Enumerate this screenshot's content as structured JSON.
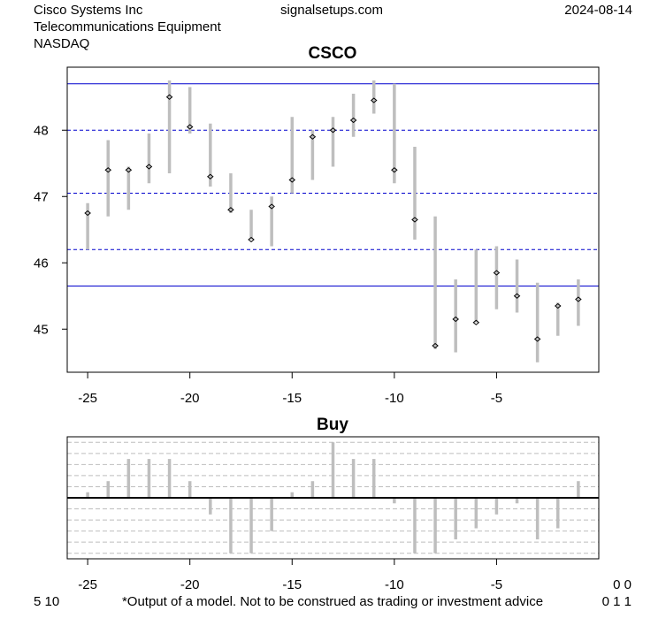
{
  "header": {
    "company": "Cisco Systems Inc",
    "industry": "Telecommunications Equipment",
    "exchange": "NASDAQ",
    "site": "signalsetups.com",
    "date": "2024-08-14"
  },
  "footer": {
    "left": "5 10",
    "disclaimer": "*Output of a model. Not to be construed as trading or investment advice",
    "right_top": "0 0",
    "right_bottom": "0 1 1"
  },
  "colors": {
    "range_bar": "#bebebe",
    "level_line": "#0000cd",
    "grid_dash": "#bebebe",
    "axis": "#000000"
  },
  "chart_data": [
    {
      "type": "range",
      "title": "CSCO",
      "xlim": [
        -26,
        0
      ],
      "ylim": [
        44.35,
        48.95
      ],
      "x_ticks": [
        -25,
        -20,
        -15,
        -10,
        -5
      ],
      "x_tick_labels": [
        "-25",
        "-20",
        "-15",
        "-10",
        "-5"
      ],
      "y_ticks": [
        45,
        46,
        47,
        48
      ],
      "y_tick_labels": [
        "45",
        "46",
        "47",
        "48"
      ],
      "x": [
        -25,
        -24,
        -23,
        -22,
        -21,
        -20,
        -19,
        -18,
        -17,
        -16,
        -15,
        -14,
        -13,
        -12,
        -11,
        -10,
        -9,
        -8,
        -7,
        -6,
        -5,
        -4,
        -3,
        -2,
        -1
      ],
      "high": [
        46.9,
        47.85,
        47.45,
        47.95,
        48.75,
        48.65,
        48.1,
        47.35,
        46.8,
        47.0,
        48.2,
        48.0,
        48.2,
        48.55,
        48.75,
        48.7,
        47.75,
        46.7,
        45.75,
        46.2,
        46.25,
        46.05,
        45.7,
        45.4,
        45.75
      ],
      "low": [
        46.2,
        46.7,
        46.8,
        47.2,
        47.35,
        47.95,
        47.15,
        46.75,
        46.35,
        46.25,
        47.05,
        47.25,
        47.45,
        47.9,
        48.25,
        47.2,
        46.35,
        44.7,
        44.65,
        45.1,
        45.3,
        45.25,
        44.5,
        44.9,
        45.05
      ],
      "close": [
        46.75,
        47.4,
        47.4,
        47.45,
        48.5,
        48.05,
        47.3,
        46.8,
        46.35,
        46.85,
        47.25,
        47.9,
        48.0,
        48.15,
        48.45,
        47.4,
        46.65,
        44.75,
        45.15,
        45.1,
        45.85,
        45.5,
        44.85,
        45.35,
        45.45
      ],
      "levels_solid": [
        48.7,
        45.65
      ],
      "levels_dashed": [
        48.0,
        47.05,
        46.2
      ]
    },
    {
      "type": "bar",
      "title": "Buy",
      "xlim": [
        -26,
        0
      ],
      "ylim": [
        -1.1,
        1.1
      ],
      "x_ticks": [
        -25,
        -20,
        -15,
        -10,
        -5
      ],
      "x_tick_labels": [
        "-25",
        "-20",
        "-15",
        "-10",
        "-5"
      ],
      "x": [
        -25,
        -24,
        -23,
        -22,
        -21,
        -20,
        -19,
        -18,
        -17,
        -16,
        -15,
        -14,
        -13,
        -12,
        -11,
        -10,
        -9,
        -8,
        -7,
        -6,
        -5,
        -4,
        -3,
        -2,
        -1
      ],
      "values": [
        0.1,
        0.3,
        0.7,
        0.7,
        0.7,
        0.3,
        -0.3,
        -1.0,
        -1.0,
        -0.6,
        0.1,
        0.3,
        1.0,
        0.7,
        0.7,
        -0.1,
        -1.0,
        -1.0,
        -0.75,
        -0.55,
        -0.3,
        -0.1,
        -0.75,
        -0.55,
        0.3
      ],
      "gridlines": [
        -1.0,
        -0.8,
        -0.6,
        -0.4,
        -0.2,
        0.2,
        0.4,
        0.6,
        0.8,
        1.0
      ]
    }
  ]
}
